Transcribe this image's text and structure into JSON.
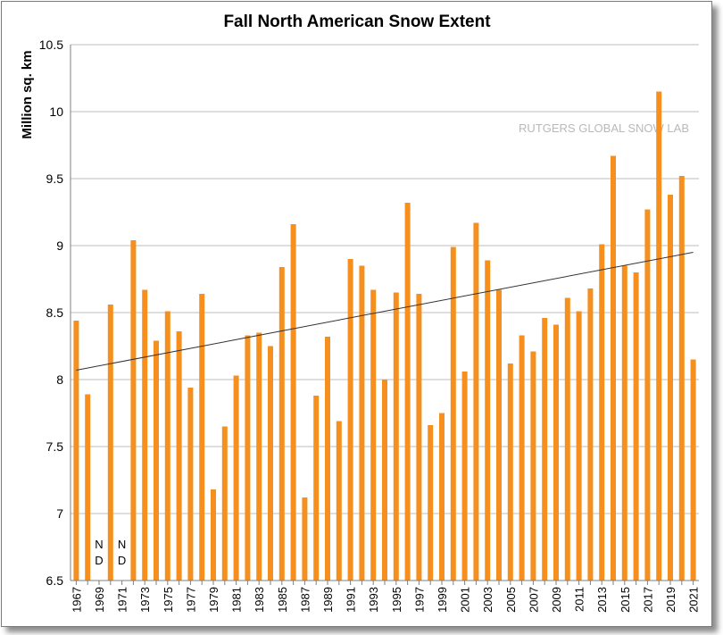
{
  "chart_data": {
    "type": "bar",
    "title": "Fall North American Snow Extent",
    "ylabel": "Million sq. km",
    "xlabel": "",
    "watermark": "RUTGERS GLOBAL SNOW LAB",
    "ylim": [
      6.5,
      10.5
    ],
    "yticks": [
      "6.5",
      "7",
      "7.5",
      "8",
      "8.5",
      "9",
      "9.5",
      "10",
      "10.5"
    ],
    "grid": true,
    "bar_color": "#f5901e",
    "trend_color": "#333333",
    "no_data_label": [
      "N",
      "D"
    ],
    "categories": [
      "1967",
      "1968",
      "1969",
      "1970",
      "1971",
      "1972",
      "1973",
      "1974",
      "1975",
      "1976",
      "1977",
      "1978",
      "1979",
      "1980",
      "1981",
      "1982",
      "1983",
      "1984",
      "1985",
      "1986",
      "1987",
      "1988",
      "1989",
      "1990",
      "1991",
      "1992",
      "1993",
      "1994",
      "1995",
      "1996",
      "1997",
      "1998",
      "1999",
      "2000",
      "2001",
      "2002",
      "2003",
      "2004",
      "2005",
      "2006",
      "2007",
      "2008",
      "2009",
      "2010",
      "2011",
      "2012",
      "2013",
      "2014",
      "2015",
      "2016",
      "2017",
      "2018",
      "2019",
      "2020",
      "2021"
    ],
    "tick_labels": [
      "1967",
      "1969",
      "1971",
      "1973",
      "1975",
      "1977",
      "1979",
      "1981",
      "1983",
      "1985",
      "1987",
      "1989",
      "1991",
      "1993",
      "1995",
      "1997",
      "1999",
      "2001",
      "2003",
      "2005",
      "2007",
      "2009",
      "2011",
      "2013",
      "2015",
      "2017",
      "2019",
      "2021"
    ],
    "values": [
      8.44,
      7.89,
      null,
      8.56,
      null,
      9.04,
      8.67,
      8.29,
      8.51,
      8.36,
      7.94,
      8.64,
      7.18,
      7.65,
      8.03,
      8.33,
      8.35,
      8.25,
      8.84,
      9.16,
      7.12,
      7.88,
      8.32,
      7.69,
      8.9,
      8.85,
      8.67,
      8.0,
      8.65,
      9.32,
      8.64,
      7.66,
      7.75,
      8.99,
      8.06,
      9.17,
      8.89,
      8.67,
      8.12,
      8.33,
      8.21,
      8.46,
      8.41,
      8.61,
      8.51,
      8.68,
      9.01,
      9.67,
      8.85,
      8.8,
      9.27,
      10.15,
      9.38,
      9.52,
      8.15
    ],
    "trend": {
      "start": 8.07,
      "end": 8.95
    }
  }
}
